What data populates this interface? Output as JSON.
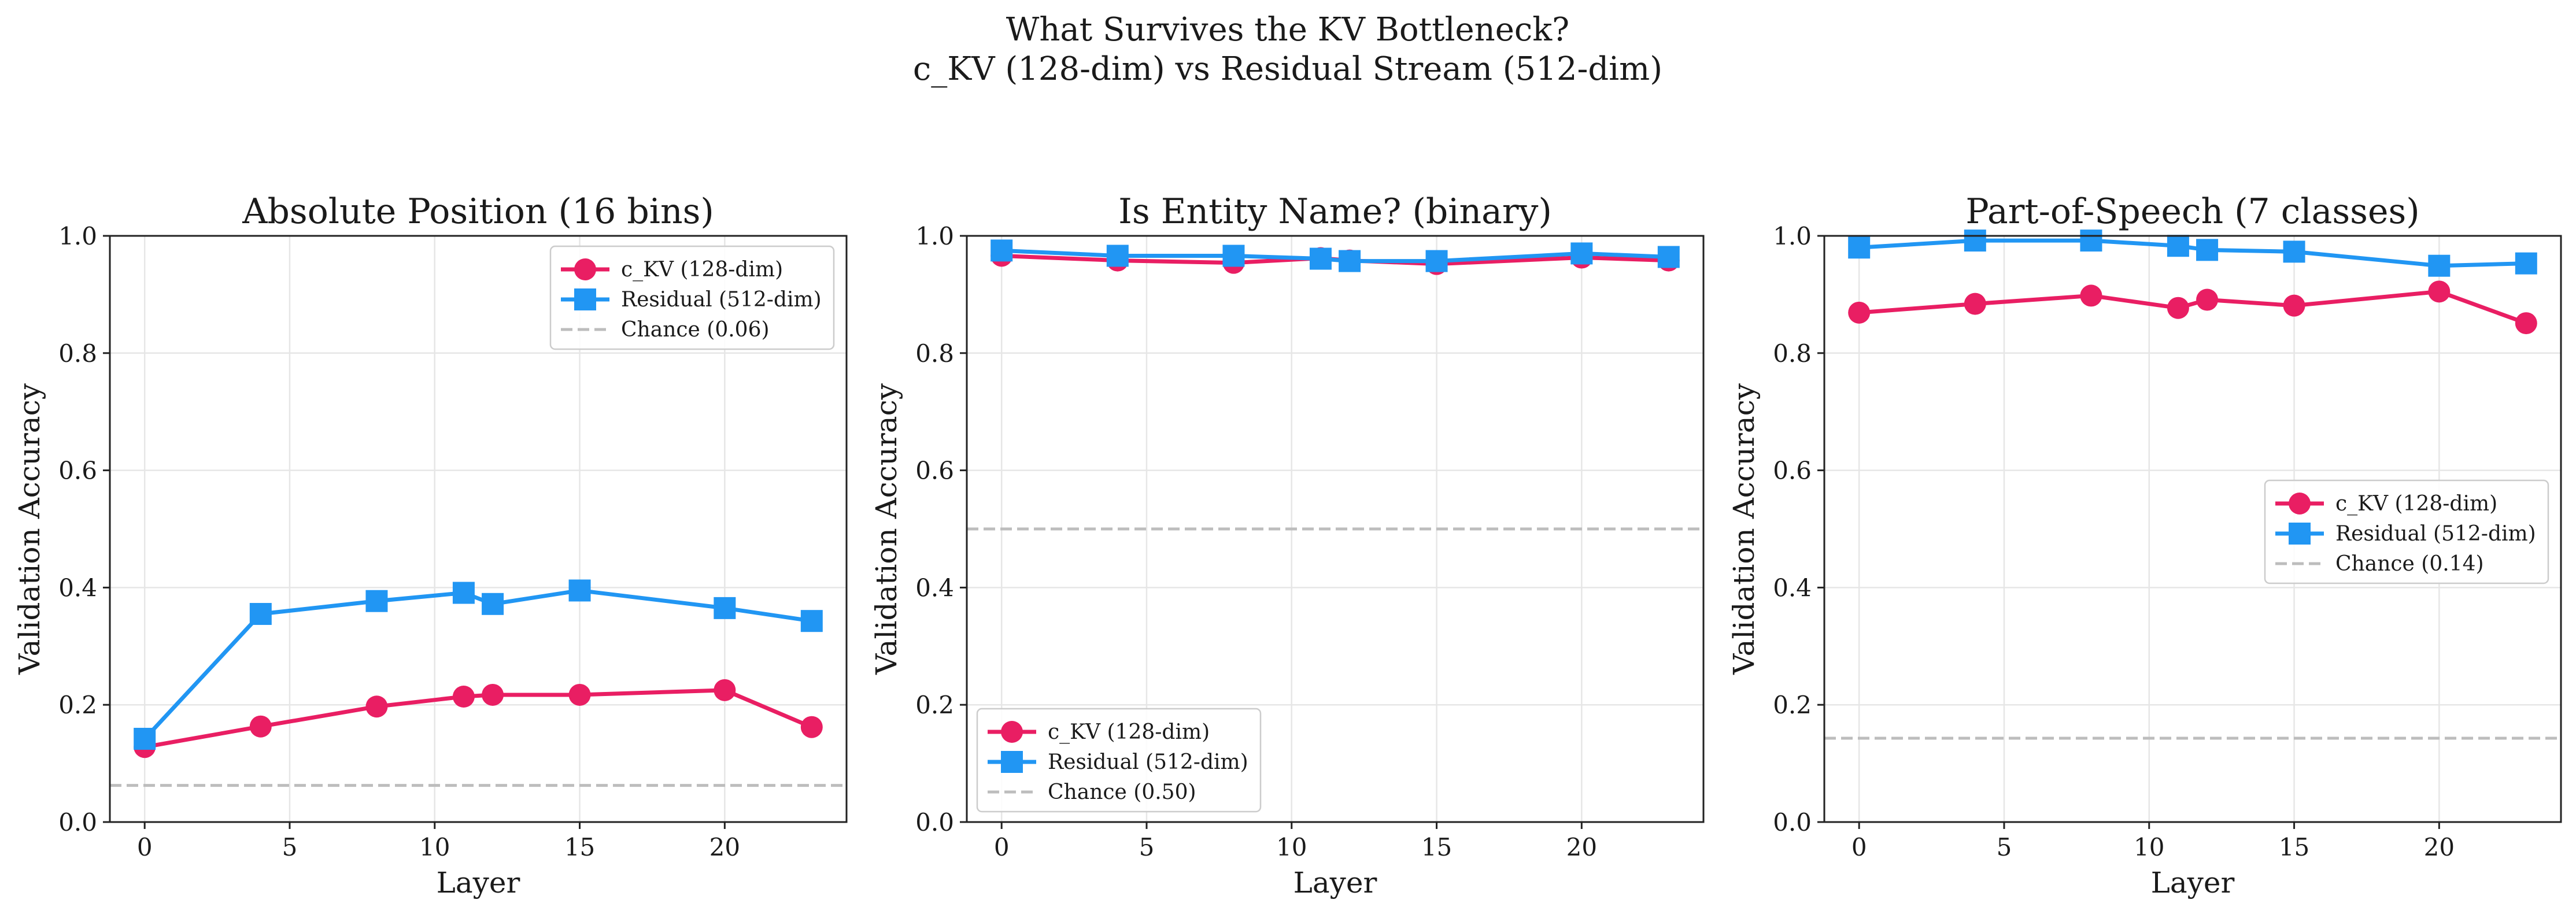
{
  "figure": {
    "title_line1": "What Survives the KV Bottleneck?",
    "title_line2": "c_KV (128-dim) vs Residual Stream (512-dim)"
  },
  "colors": {
    "ckv": "#e91e63",
    "residual": "#2196f3",
    "chance": "#bdbdbd",
    "grid": "#e6e6e6"
  },
  "chart_data": [
    {
      "type": "line",
      "title": "Absolute Position (16 bins)",
      "xlabel": "Layer",
      "ylabel": "Validation Accuracy",
      "xlim": [
        -1.2,
        24.2
      ],
      "ylim": [
        0,
        1.0
      ],
      "xticks": [
        0,
        5,
        10,
        15,
        20
      ],
      "yticks": [
        0.0,
        0.2,
        0.4,
        0.6,
        0.8,
        1.0
      ],
      "grid": true,
      "legend_position": "upper-right",
      "x": [
        0,
        4,
        8,
        11,
        12,
        15,
        20,
        23
      ],
      "series": [
        {
          "name": "c_KV (128-dim)",
          "marker": "circle",
          "values": [
            0.128,
            0.163,
            0.197,
            0.214,
            0.217,
            0.217,
            0.225,
            0.162
          ]
        },
        {
          "name": "Residual (512-dim)",
          "marker": "square",
          "values": [
            0.142,
            0.355,
            0.377,
            0.391,
            0.372,
            0.395,
            0.365,
            0.343
          ]
        }
      ],
      "chance": {
        "name": "Chance (0.06)",
        "value": 0.0625
      }
    },
    {
      "type": "line",
      "title": "Is Entity Name? (binary)",
      "xlabel": "Layer",
      "ylabel": "Validation Accuracy",
      "xlim": [
        -1.2,
        24.2
      ],
      "ylim": [
        0,
        1.0
      ],
      "xticks": [
        0,
        5,
        10,
        15,
        20
      ],
      "yticks": [
        0.0,
        0.2,
        0.4,
        0.6,
        0.8,
        1.0
      ],
      "grid": true,
      "legend_position": "lower-left",
      "x": [
        0,
        4,
        8,
        11,
        12,
        15,
        20,
        23
      ],
      "series": [
        {
          "name": "c_KV (128-dim)",
          "marker": "circle",
          "values": [
            0.966,
            0.958,
            0.954,
            0.962,
            0.958,
            0.952,
            0.963,
            0.958
          ]
        },
        {
          "name": "Residual (512-dim)",
          "marker": "square",
          "values": [
            0.975,
            0.966,
            0.966,
            0.961,
            0.957,
            0.957,
            0.97,
            0.964
          ]
        }
      ],
      "chance": {
        "name": "Chance (0.50)",
        "value": 0.5
      }
    },
    {
      "type": "line",
      "title": "Part-of-Speech (7 classes)",
      "xlabel": "Layer",
      "ylabel": "Validation Accuracy",
      "xlim": [
        -1.2,
        24.2
      ],
      "ylim": [
        0,
        1.0
      ],
      "xticks": [
        0,
        5,
        10,
        15,
        20
      ],
      "yticks": [
        0.0,
        0.2,
        0.4,
        0.6,
        0.8,
        1.0
      ],
      "grid": true,
      "legend_position": "center-right",
      "x": [
        0,
        4,
        8,
        11,
        12,
        15,
        20,
        23
      ],
      "series": [
        {
          "name": "c_KV (128-dim)",
          "marker": "circle",
          "values": [
            0.869,
            0.884,
            0.898,
            0.877,
            0.891,
            0.881,
            0.905,
            0.851
          ]
        },
        {
          "name": "Residual (512-dim)",
          "marker": "square",
          "values": [
            0.98,
            0.992,
            0.992,
            0.983,
            0.976,
            0.973,
            0.949,
            0.953
          ]
        }
      ],
      "chance": {
        "name": "Chance (0.14)",
        "value": 0.143
      }
    }
  ]
}
